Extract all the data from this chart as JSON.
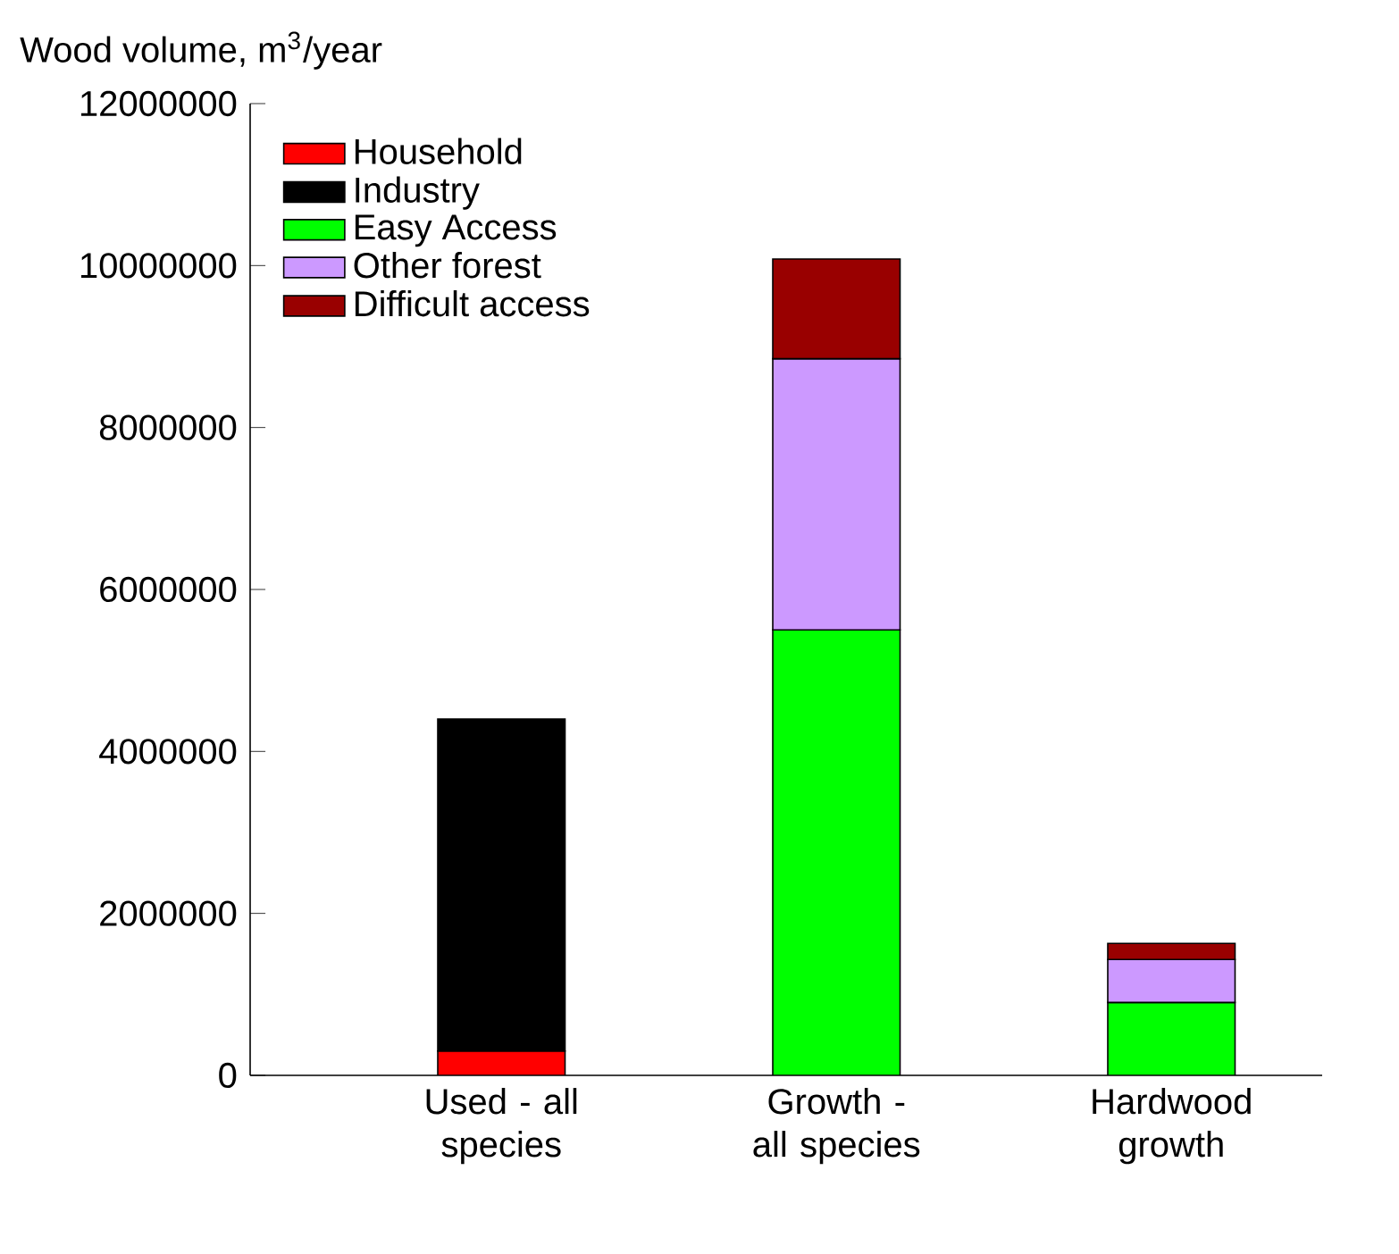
{
  "chart_data": {
    "type": "bar",
    "stacked": true,
    "ylabel": "Wood volume, m$^{3}$/year",
    "categories": [
      "Used - all species",
      "Growth - all species",
      "Hardwood growth"
    ],
    "series": [
      {
        "name": "Household",
        "color": "#ff0000",
        "values": [
          300000,
          null,
          null
        ]
      },
      {
        "name": "Industry",
        "color": "#000000",
        "values": [
          4100000,
          null,
          null
        ]
      },
      {
        "name": "Easy Access",
        "color": "#00ff00",
        "values": [
          null,
          5500000,
          900000
        ]
      },
      {
        "name": "Other forest",
        "color": "#cc99ff",
        "values": [
          null,
          3350000,
          530000
        ]
      },
      {
        "name": "Difficult access",
        "color": "#990000",
        "values": [
          null,
          1230000,
          200000
        ]
      }
    ],
    "ylim": [
      0,
      12000000
    ],
    "yticks": [
      0,
      2000000,
      4000000,
      6000000,
      8000000,
      10000000,
      12000000
    ],
    "legend": "top left"
  }
}
